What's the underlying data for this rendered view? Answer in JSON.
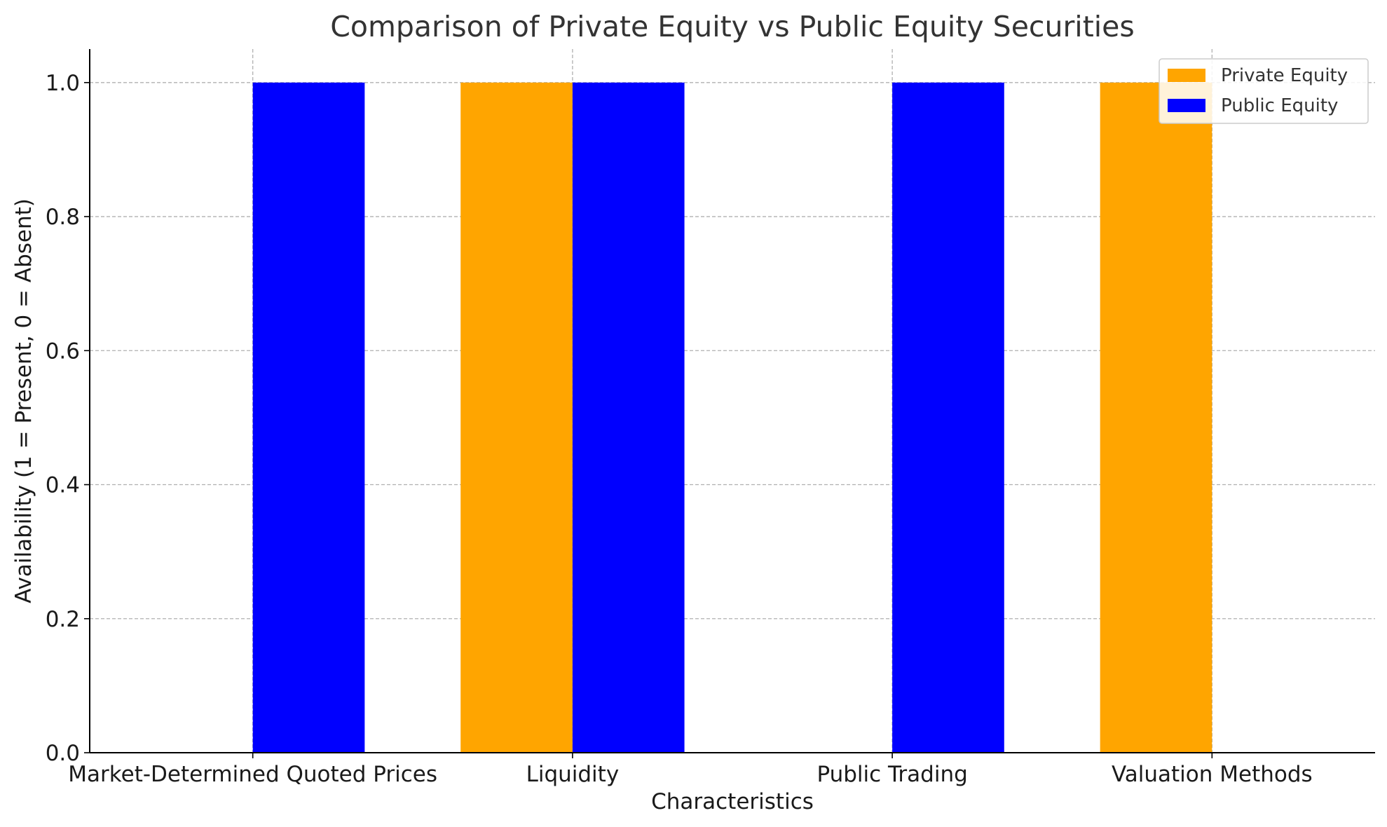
{
  "chart_data": {
    "type": "bar",
    "title": "Comparison of Private Equity vs Public Equity Securities",
    "xlabel": "Characteristics",
    "ylabel": "Availability (1 = Present, 0 = Absent)",
    "categories": [
      "Market-Determined Quoted Prices",
      "Liquidity",
      "Public Trading",
      "Valuation Methods"
    ],
    "series": [
      {
        "name": "Private Equity",
        "color": "#FFA500",
        "values": [
          0,
          1,
          0,
          1
        ]
      },
      {
        "name": "Public Equity",
        "color": "#0000FF",
        "values": [
          1,
          1,
          1,
          0
        ]
      }
    ],
    "ylim": [
      0,
      1.05
    ],
    "yticks": [
      0.0,
      0.2,
      0.4,
      0.6,
      0.8,
      1.0
    ],
    "ytick_labels": [
      "0.0",
      "0.2",
      "0.4",
      "0.6",
      "0.8",
      "1.0"
    ],
    "grid": true,
    "legend_position": "top-right"
  }
}
